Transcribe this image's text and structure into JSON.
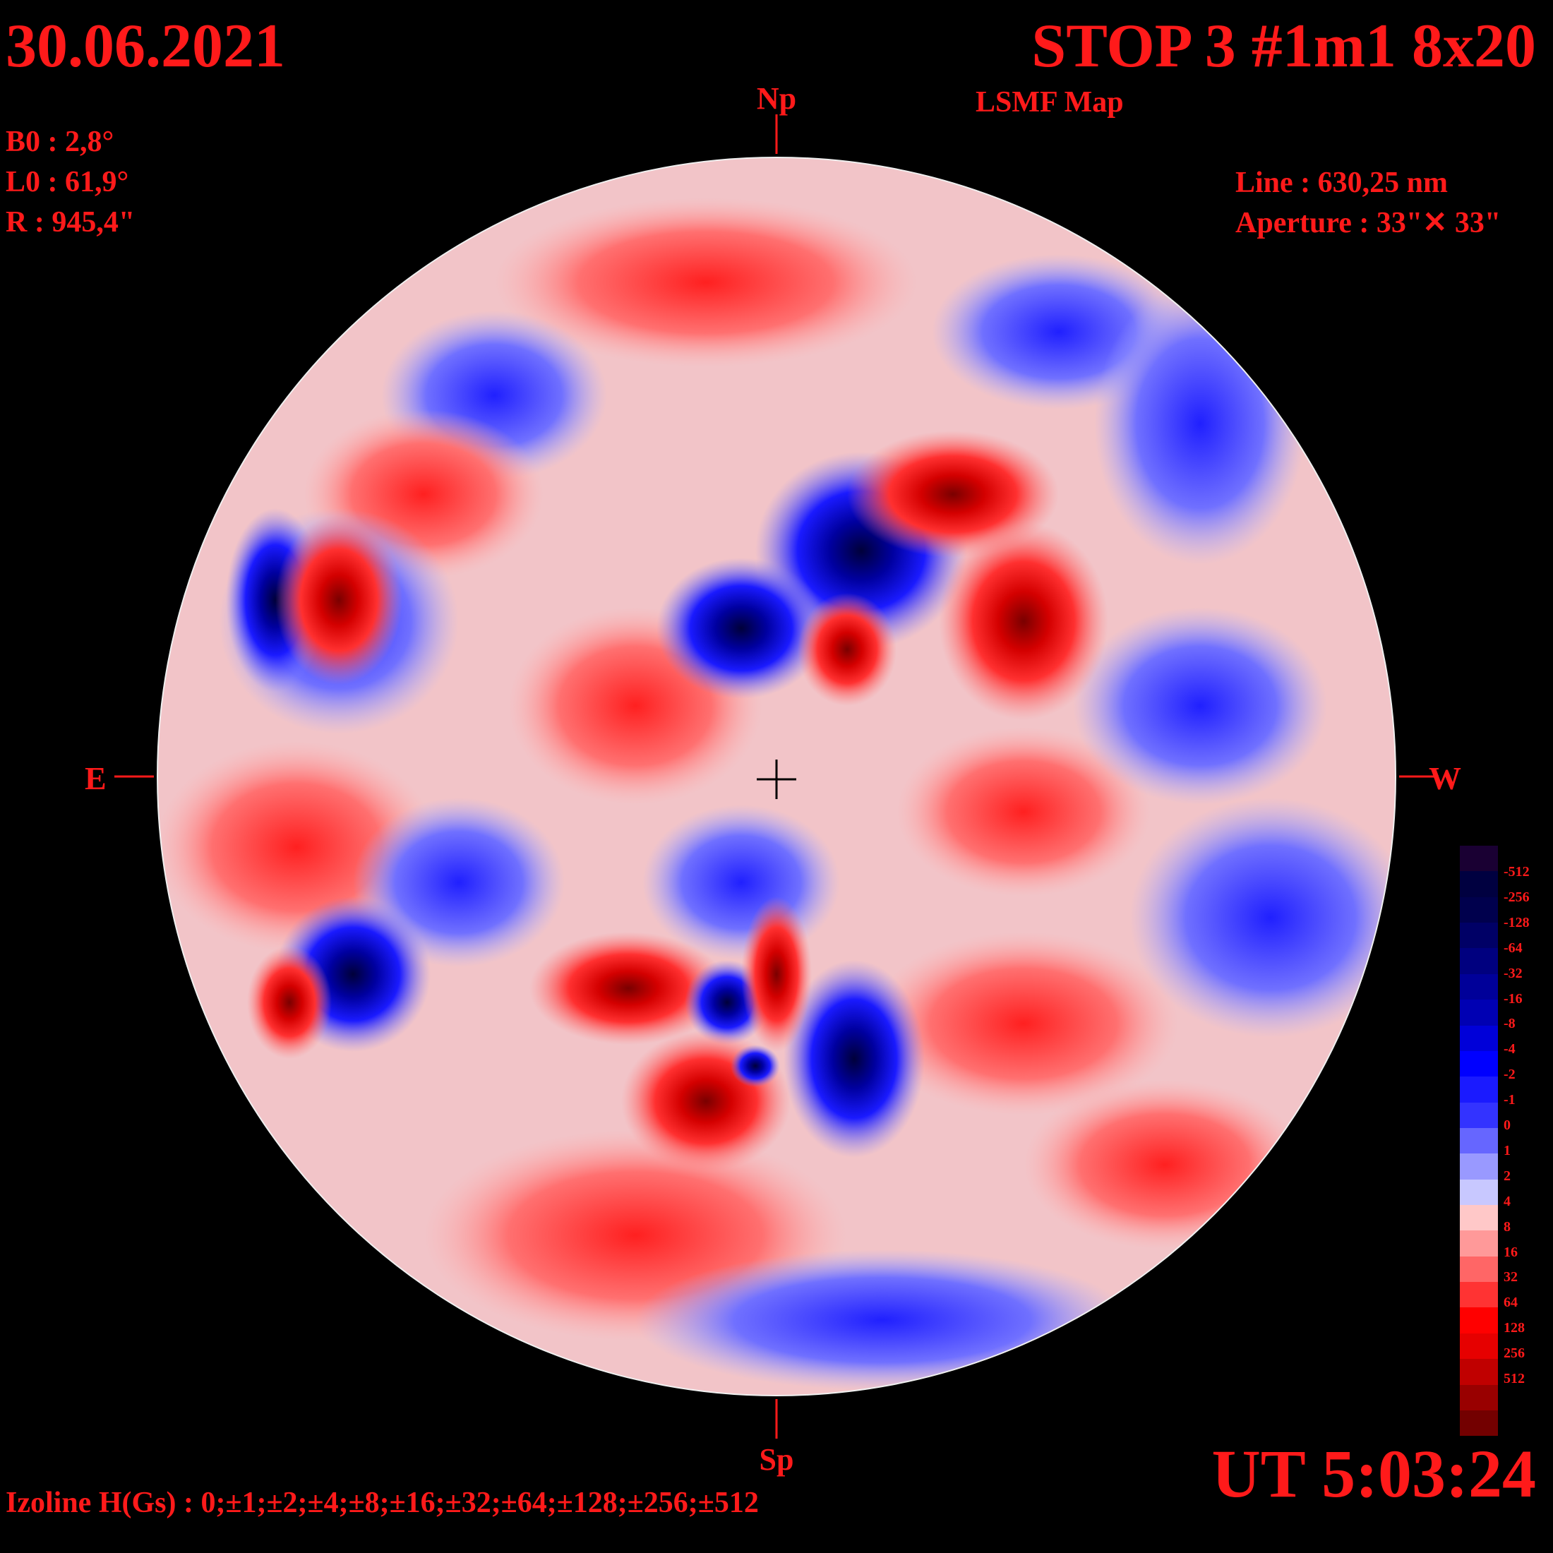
{
  "header": {
    "date": "30.06.2021",
    "title": "STOP 3 #1m1 8x20",
    "subtitle": "LSMF  Map"
  },
  "params": {
    "b0": "B0 : 2,8°",
    "l0": "L0 : 61,9°",
    "radius": "R  : 945,4\"",
    "line": "Line :  630,25 nm",
    "aperture": "Aperture : 33\"✕ 33\""
  },
  "axes": {
    "north": "Np",
    "south": "Sp",
    "east": "E",
    "west": "W"
  },
  "time": "UT 5:03:24",
  "izoline": "Izoline H(Gs) : 0;±1;±2;±4;±8;±16;±32;±64;±128;±256;±512",
  "legend": {
    "labels": [
      "-512",
      "-256",
      "-128",
      "-64",
      "-32",
      "-16",
      "-8",
      "-4",
      "-2",
      "-1",
      "0",
      "1",
      "2",
      "4",
      "8",
      "16",
      "32",
      "64",
      "128",
      "256",
      "512"
    ],
    "colors": [
      "#1a0033",
      "#000040",
      "#00004d",
      "#000066",
      "#00007f",
      "#000099",
      "#0000b3",
      "#0000d9",
      "#0000ff",
      "#1a1aff",
      "#3333ff",
      "#6666ff",
      "#9999ff",
      "#c8c8ff",
      "#ffc8c8",
      "#ff9999",
      "#ff6666",
      "#ff3333",
      "#ff0000",
      "#e60000",
      "#c00000",
      "#990000",
      "#730000"
    ]
  },
  "colors": {
    "text": "#ff1a1a",
    "background": "#000000",
    "positive": "#ff0000",
    "negative": "#0000ff"
  }
}
